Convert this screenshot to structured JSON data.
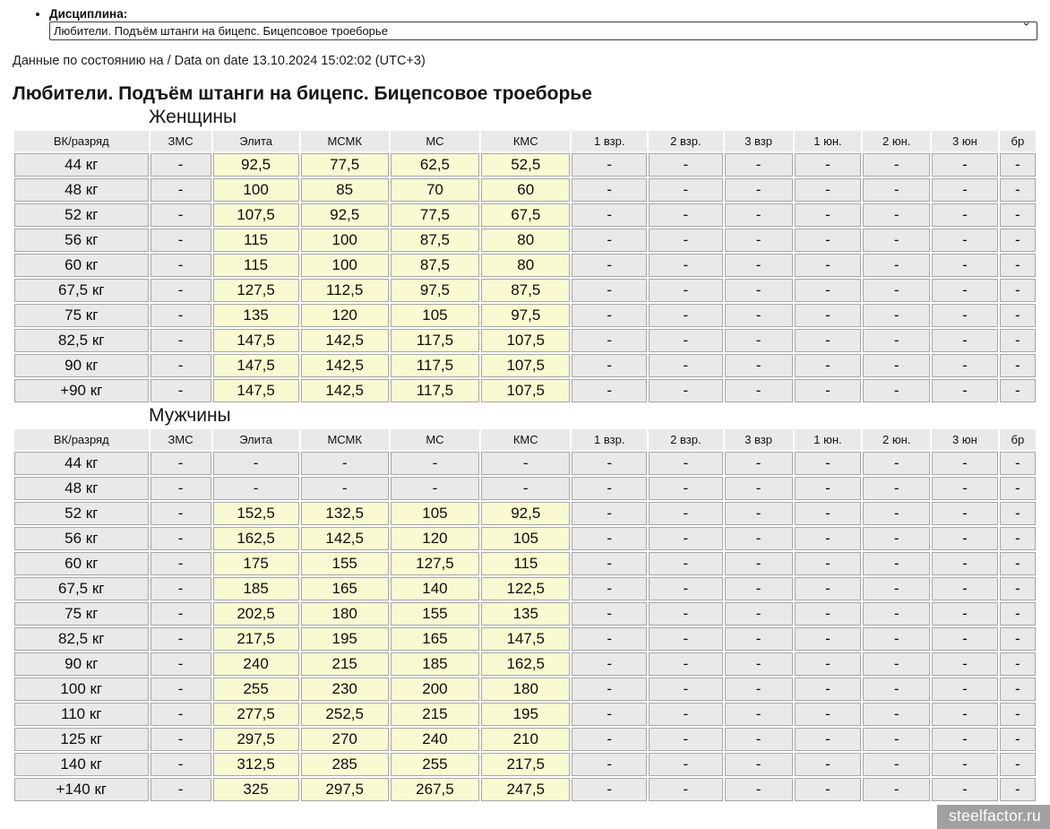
{
  "controls": {
    "discipline_label": "Дисциплина:",
    "discipline_value": "Любители. Подъём штанги на бицепс. Бицепсовое троеборье",
    "chevron_icon": "⌄"
  },
  "meta": {
    "date_line": "Данные по состоянию на / Data on date 13.10.2024 15:02:02 (UTC+3)",
    "title": "Любители. Подъём штанги на бицепс. Бицепсовое троеборье",
    "watermark": "steelfactor.ru"
  },
  "colors": {
    "cell_gray": "#e9e9e9",
    "cell_yellow": "#fafad2",
    "cell_border": "#a6a6a6",
    "watermark_bg": "#949494",
    "watermark_text": "#ffffff"
  },
  "table": {
    "headers": [
      "ВК/разряд",
      "ЗМС",
      "Элита",
      "МСМК",
      "МС",
      "КМС",
      "1 взр.",
      "2 взр.",
      "3 взр",
      "1 юн.",
      "2 юн.",
      "3 юн",
      "бр"
    ],
    "sections": [
      {
        "key": "women",
        "title": "Женщины",
        "rows": [
          [
            "44 кг",
            "-",
            "92,5",
            "77,5",
            "62,5",
            "52,5",
            "-",
            "-",
            "-",
            "-",
            "-",
            "-",
            "-"
          ],
          [
            "48 кг",
            "-",
            "100",
            "85",
            "70",
            "60",
            "-",
            "-",
            "-",
            "-",
            "-",
            "-",
            "-"
          ],
          [
            "52 кг",
            "-",
            "107,5",
            "92,5",
            "77,5",
            "67,5",
            "-",
            "-",
            "-",
            "-",
            "-",
            "-",
            "-"
          ],
          [
            "56 кг",
            "-",
            "115",
            "100",
            "87,5",
            "80",
            "-",
            "-",
            "-",
            "-",
            "-",
            "-",
            "-"
          ],
          [
            "60 кг",
            "-",
            "115",
            "100",
            "87,5",
            "80",
            "-",
            "-",
            "-",
            "-",
            "-",
            "-",
            "-"
          ],
          [
            "67,5 кг",
            "-",
            "127,5",
            "112,5",
            "97,5",
            "87,5",
            "-",
            "-",
            "-",
            "-",
            "-",
            "-",
            "-"
          ],
          [
            "75 кг",
            "-",
            "135",
            "120",
            "105",
            "97,5",
            "-",
            "-",
            "-",
            "-",
            "-",
            "-",
            "-"
          ],
          [
            "82,5 кг",
            "-",
            "147,5",
            "142,5",
            "117,5",
            "107,5",
            "-",
            "-",
            "-",
            "-",
            "-",
            "-",
            "-"
          ],
          [
            "90 кг",
            "-",
            "147,5",
            "142,5",
            "117,5",
            "107,5",
            "-",
            "-",
            "-",
            "-",
            "-",
            "-",
            "-"
          ],
          [
            "+90 кг",
            "-",
            "147,5",
            "142,5",
            "117,5",
            "107,5",
            "-",
            "-",
            "-",
            "-",
            "-",
            "-",
            "-"
          ]
        ]
      },
      {
        "key": "men",
        "title": "Мужчины",
        "rows": [
          [
            "44 кг",
            "-",
            "-",
            "-",
            "-",
            "-",
            "-",
            "-",
            "-",
            "-",
            "-",
            "-",
            "-"
          ],
          [
            "48 кг",
            "-",
            "-",
            "-",
            "-",
            "-",
            "-",
            "-",
            "-",
            "-",
            "-",
            "-",
            "-"
          ],
          [
            "52 кг",
            "-",
            "152,5",
            "132,5",
            "105",
            "92,5",
            "-",
            "-",
            "-",
            "-",
            "-",
            "-",
            "-"
          ],
          [
            "56 кг",
            "-",
            "162,5",
            "142,5",
            "120",
            "105",
            "-",
            "-",
            "-",
            "-",
            "-",
            "-",
            "-"
          ],
          [
            "60 кг",
            "-",
            "175",
            "155",
            "127,5",
            "115",
            "-",
            "-",
            "-",
            "-",
            "-",
            "-",
            "-"
          ],
          [
            "67,5 кг",
            "-",
            "185",
            "165",
            "140",
            "122,5",
            "-",
            "-",
            "-",
            "-",
            "-",
            "-",
            "-"
          ],
          [
            "75 кг",
            "-",
            "202,5",
            "180",
            "155",
            "135",
            "-",
            "-",
            "-",
            "-",
            "-",
            "-",
            "-"
          ],
          [
            "82,5 кг",
            "-",
            "217,5",
            "195",
            "165",
            "147,5",
            "-",
            "-",
            "-",
            "-",
            "-",
            "-",
            "-"
          ],
          [
            "90 кг",
            "-",
            "240",
            "215",
            "185",
            "162,5",
            "-",
            "-",
            "-",
            "-",
            "-",
            "-",
            "-"
          ],
          [
            "100 кг",
            "-",
            "255",
            "230",
            "200",
            "180",
            "-",
            "-",
            "-",
            "-",
            "-",
            "-",
            "-"
          ],
          [
            "110 кг",
            "-",
            "277,5",
            "252,5",
            "215",
            "195",
            "-",
            "-",
            "-",
            "-",
            "-",
            "-",
            "-"
          ],
          [
            "125 кг",
            "-",
            "297,5",
            "270",
            "240",
            "210",
            "-",
            "-",
            "-",
            "-",
            "-",
            "-",
            "-"
          ],
          [
            "140 кг",
            "-",
            "312,5",
            "285",
            "255",
            "217,5",
            "-",
            "-",
            "-",
            "-",
            "-",
            "-",
            "-"
          ],
          [
            "+140 кг",
            "-",
            "325",
            "297,5",
            "267,5",
            "247,5",
            "-",
            "-",
            "-",
            "-",
            "-",
            "-",
            "-"
          ]
        ]
      }
    ]
  }
}
